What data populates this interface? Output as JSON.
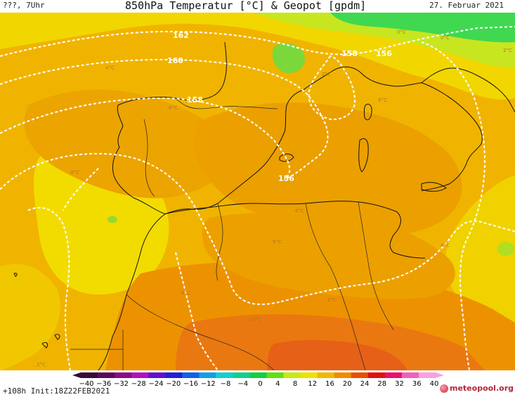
{
  "header": {
    "left": "???, 7Uhr",
    "title": "850hPa Temperatur [°C] & Geopot [gpdm]",
    "date": "27. Februar 2021"
  },
  "footer": {
    "left": "+108h Init:18Z22FEB2021",
    "brand": "meteopool.org"
  },
  "geopot_labels": [
    "162",
    "160",
    "158",
    "158",
    "156",
    "156"
  ],
  "temp_labels": [
    "4°C",
    "6°C",
    "4°C",
    "2°C",
    "0°C",
    "2°C",
    "6°C",
    "6°C",
    "6°C",
    "4°C",
    "10°C",
    "6°C",
    "8°C",
    "0°C",
    "2°C"
  ],
  "colorbar": {
    "ticks": [
      "−40",
      "−36",
      "−32",
      "−28",
      "−24",
      "−20",
      "−16",
      "−12",
      "−8",
      "−4",
      "0",
      "4",
      "8",
      "12",
      "16",
      "20",
      "24",
      "28",
      "32",
      "36",
      "40"
    ],
    "colors": [
      "#3a0a3a",
      "#5a0a5a",
      "#8a0a8a",
      "#b010c0",
      "#6010d0",
      "#2020d8",
      "#1060e8",
      "#10a0e8",
      "#10d0d0",
      "#10d090",
      "#10d040",
      "#60e010",
      "#c8e810",
      "#f0e000",
      "#f0b800",
      "#f08c00",
      "#e85000",
      "#e01010",
      "#e81070",
      "#f060c0",
      "#f8a0e0"
    ]
  }
}
